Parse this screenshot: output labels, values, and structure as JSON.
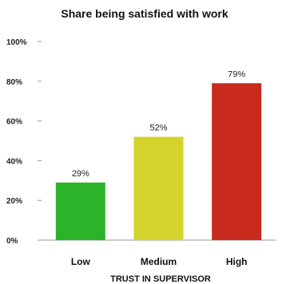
{
  "chart_data": {
    "type": "bar",
    "title": "Share being satisfied with work",
    "xlabel": "TRUST IN SUPERVISOR",
    "ylabel": "",
    "categories": [
      "Low",
      "Medium",
      "High"
    ],
    "values": [
      29,
      52,
      79
    ],
    "data_labels": [
      "29%",
      "52%",
      "79%"
    ],
    "colors": [
      "#2db32a",
      "#d3d32c",
      "#c92a1e"
    ],
    "ylim": [
      0,
      100
    ],
    "yticks": [
      0,
      20,
      40,
      60,
      80,
      100
    ],
    "ytick_labels": [
      "0%",
      "20%",
      "40%",
      "60%",
      "80%",
      "100%"
    ],
    "grid": false,
    "legend": "none"
  }
}
